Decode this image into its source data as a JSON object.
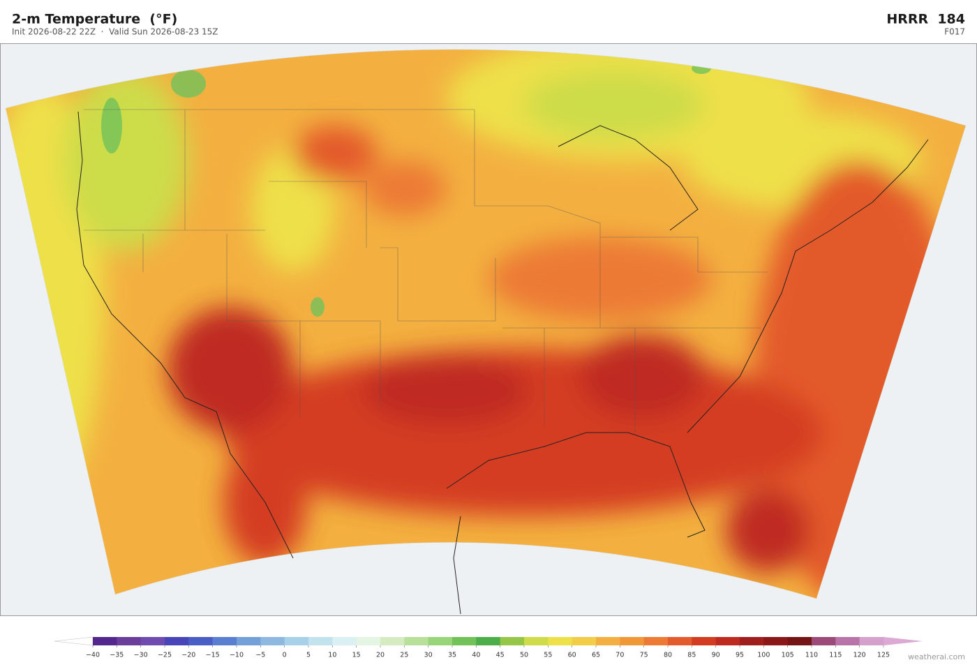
{
  "header": {
    "title": "2-m Temperature  (°F)",
    "subtitle": "Init 2026-08-22 22Z  ·  Valid Sun 2026-08-23 15Z",
    "model": "HRRR  184",
    "forecast_hour": "F017"
  },
  "colorbar": {
    "ticks": [
      {
        "value": -40,
        "label": "−40"
      },
      {
        "value": -35,
        "label": "−35"
      },
      {
        "value": -30,
        "label": "−30"
      },
      {
        "value": -25,
        "label": "−25"
      },
      {
        "value": -20,
        "label": "−20"
      },
      {
        "value": -15,
        "label": "−15"
      },
      {
        "value": -10,
        "label": "−10"
      },
      {
        "value": -5,
        "label": "−5"
      },
      0,
      5,
      10,
      15,
      20,
      25,
      30,
      35,
      40,
      45,
      50,
      55,
      60,
      65,
      70,
      75,
      80,
      85,
      90,
      95,
      100,
      105,
      110,
      115,
      120,
      125
    ],
    "colors": [
      "#54278f",
      "#6a3d9a",
      "#6f4bb0",
      "#4845b8",
      "#4a5fc6",
      "#5a7fd0",
      "#73a0d8",
      "#8fb8e0",
      "#a8d0e8",
      "#c2e2ee",
      "#daf0f2",
      "#e4f5e4",
      "#d4ecc0",
      "#b8e09a",
      "#98d478",
      "#72c25a",
      "#4cae48",
      "#96c648",
      "#cddc48",
      "#eee048",
      "#f3cc48",
      "#f3b040",
      "#f09838",
      "#ec7a35",
      "#e35a2c",
      "#d43c22",
      "#bf2a20",
      "#a01e1e",
      "#8a1818",
      "#741414",
      "#9c4a78",
      "#b874a8",
      "#d4a0cc"
    ],
    "under_color": "#ffffff",
    "over_color": "#dca8d4"
  },
  "watermark": "weatherai.com"
}
